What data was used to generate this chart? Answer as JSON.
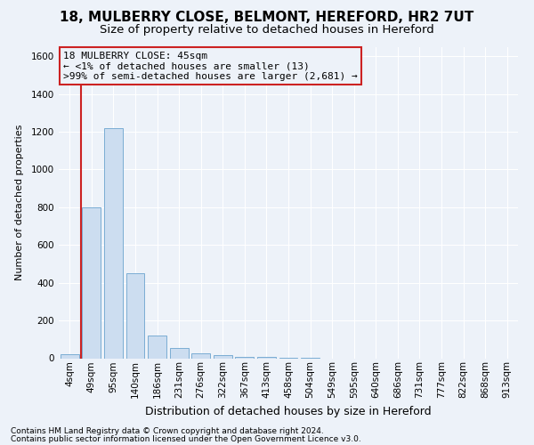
{
  "title_line1": "18, MULBERRY CLOSE, BELMONT, HEREFORD, HR2 7UT",
  "title_line2": "Size of property relative to detached houses in Hereford",
  "xlabel": "Distribution of detached houses by size in Hereford",
  "ylabel": "Number of detached properties",
  "footnote1": "Contains HM Land Registry data © Crown copyright and database right 2024.",
  "footnote2": "Contains public sector information licensed under the Open Government Licence v3.0.",
  "bar_color": "#ccddf0",
  "bar_edge_color": "#7aadd4",
  "annotation_box_edge_color": "#cc2222",
  "vline_color": "#cc2222",
  "annotation_line1": "18 MULBERRY CLOSE: 45sqm",
  "annotation_line2": "← <1% of detached houses are smaller (13)",
  "annotation_line3": ">99% of semi-detached houses are larger (2,681) →",
  "categories": [
    "4sqm",
    "49sqm",
    "95sqm",
    "140sqm",
    "186sqm",
    "231sqm",
    "276sqm",
    "322sqm",
    "367sqm",
    "413sqm",
    "458sqm",
    "504sqm",
    "549sqm",
    "595sqm",
    "640sqm",
    "686sqm",
    "731sqm",
    "777sqm",
    "822sqm",
    "868sqm",
    "913sqm"
  ],
  "values": [
    20,
    800,
    1220,
    450,
    120,
    55,
    25,
    15,
    8,
    5,
    3,
    1,
    0,
    0,
    0,
    0,
    0,
    0,
    0,
    0,
    0
  ],
  "ylim": [
    0,
    1650
  ],
  "yticks": [
    0,
    200,
    400,
    600,
    800,
    1000,
    1200,
    1400,
    1600
  ],
  "vline_x_index": 0.5,
  "background_color": "#edf2f9",
  "grid_color": "#ffffff",
  "title_fontsize": 11,
  "subtitle_fontsize": 9.5,
  "ylabel_fontsize": 8,
  "xlabel_fontsize": 9,
  "tick_fontsize": 7.5,
  "annot_fontsize": 8,
  "footnote_fontsize": 6.5
}
